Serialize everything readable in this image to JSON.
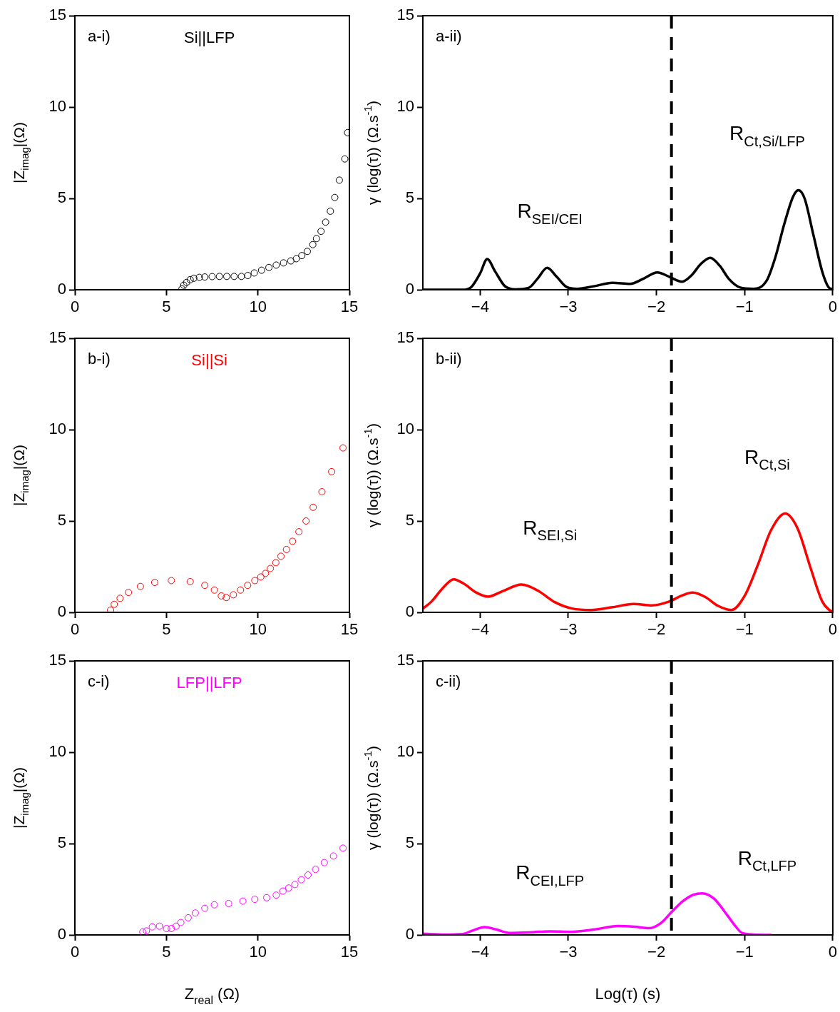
{
  "chart_data": [
    {
      "type": "scatter",
      "title": "a-i)",
      "ylabel": "|Z$_{imag}$|(Ω)",
      "xlim": [
        0,
        15
      ],
      "ylim": [
        0,
        15
      ],
      "xticks": [
        0,
        5,
        10,
        15
      ],
      "yticks": [
        0,
        5,
        10,
        15
      ],
      "marker": "circle",
      "series": [
        {
          "name": "Si||LFP",
          "color": "#000000",
          "x": [
            5.85,
            5.95,
            6.1,
            6.3,
            6.5,
            6.8,
            7.1,
            7.5,
            7.9,
            8.3,
            8.7,
            9.1,
            9.45,
            9.8,
            10.2,
            10.6,
            11.0,
            11.4,
            11.8,
            12.1,
            12.4,
            12.7,
            13.0,
            13.2,
            13.45,
            13.7,
            13.96,
            14.2,
            14.45,
            14.75,
            14.9
          ],
          "values": [
            0.05,
            0.25,
            0.4,
            0.55,
            0.63,
            0.68,
            0.7,
            0.72,
            0.73,
            0.73,
            0.73,
            0.73,
            0.78,
            0.92,
            1.07,
            1.22,
            1.35,
            1.47,
            1.58,
            1.7,
            1.87,
            2.1,
            2.47,
            2.8,
            3.2,
            3.7,
            4.3,
            5.05,
            6.0,
            7.16,
            8.6
          ]
        }
      ]
    },
    {
      "type": "line",
      "title": "a-ii)",
      "ylabel": "γ (log(τ)) (Ω.s$^{-1}$)",
      "xlim": [
        -4.65,
        0
      ],
      "ylim": [
        0,
        15
      ],
      "xticks": [
        {
          "value": -4,
          "label": "−4"
        },
        {
          "value": -3,
          "label": "−3"
        },
        {
          "value": -2,
          "label": "−2"
        },
        {
          "value": -1,
          "label": "−1"
        },
        0
      ],
      "yticks": [
        0,
        5,
        10,
        15
      ],
      "marker": "none",
      "ref_lines": [
        {
          "axis": "x",
          "value": -1.83,
          "color": "#000000",
          "line_style": "dashed"
        }
      ],
      "annotations": [
        "R$_{SEI/CEI}$",
        "R$_{Ct,Si/LFP}$"
      ],
      "series": [
        {
          "color": "#000000",
          "x": [
            -4.65,
            -4.2,
            -4.1,
            -4.0,
            -3.92,
            -3.83,
            -3.72,
            -3.6,
            -3.45,
            -3.35,
            -3.24,
            -3.13,
            -3.02,
            -2.9,
            -2.7,
            -2.5,
            -2.3,
            -2.15,
            -1.99,
            -1.85,
            -1.71,
            -1.6,
            -1.5,
            -1.39,
            -1.28,
            -1.18,
            -1.05,
            -0.9,
            -0.75,
            -0.65,
            -0.55,
            -0.45,
            -0.39,
            -0.32,
            -0.22,
            -0.12,
            -0.05,
            0
          ],
          "values": [
            0,
            0,
            0.15,
            0.9,
            1.68,
            1.0,
            0.2,
            0.02,
            0.1,
            0.6,
            1.2,
            0.7,
            0.15,
            0.05,
            0.2,
            0.38,
            0.32,
            0.6,
            0.95,
            0.7,
            0.44,
            0.8,
            1.4,
            1.75,
            1.3,
            0.6,
            0.12,
            0.05,
            0.5,
            1.8,
            3.6,
            5.1,
            5.45,
            5.0,
            3.0,
            1.0,
            0.15,
            0.02
          ]
        }
      ]
    },
    {
      "type": "scatter",
      "title": "b-i)",
      "ylabel": "|Z$_{imag}$|(Ω)",
      "xlim": [
        0,
        15
      ],
      "ylim": [
        0,
        15
      ],
      "xticks": [
        0,
        5,
        10,
        15
      ],
      "yticks": [
        0,
        5,
        10,
        15
      ],
      "marker": "circle",
      "series": [
        {
          "name": "Si||Si",
          "color": "#ff0000",
          "x": [
            1.95,
            2.15,
            2.47,
            2.93,
            3.58,
            4.36,
            5.27,
            6.3,
            7.1,
            7.62,
            8.0,
            8.27,
            8.66,
            9.05,
            9.44,
            9.83,
            10.16,
            10.41,
            10.68,
            10.98,
            11.26,
            11.56,
            11.89,
            12.24,
            12.63,
            13.02,
            13.5,
            14.03,
            14.65
          ],
          "values": [
            0.12,
            0.44,
            0.77,
            1.09,
            1.42,
            1.64,
            1.74,
            1.68,
            1.48,
            1.22,
            0.9,
            0.81,
            0.96,
            1.22,
            1.48,
            1.74,
            1.94,
            2.13,
            2.4,
            2.72,
            3.07,
            3.44,
            3.89,
            4.41,
            5.0,
            5.75,
            6.6,
            7.7,
            9.0
          ]
        }
      ]
    },
    {
      "type": "line",
      "title": "b-ii)",
      "ylabel": "γ (log(τ)) (Ω.s$^{-1}$)",
      "xlim": [
        -4.65,
        0
      ],
      "ylim": [
        0,
        15
      ],
      "xticks": [
        {
          "value": -4,
          "label": "−4"
        },
        {
          "value": -3,
          "label": "−3"
        },
        {
          "value": -2,
          "label": "−2"
        },
        {
          "value": -1,
          "label": "−1"
        },
        0
      ],
      "yticks": [
        0,
        5,
        10,
        15
      ],
      "marker": "none",
      "ref_lines": [
        {
          "axis": "x",
          "value": -1.83,
          "color": "#000000",
          "line_style": "dashed"
        }
      ],
      "annotations": [
        "R$_{SEI,Si}$",
        "R$_{Ct,Si}$"
      ],
      "series": [
        {
          "color": "#ff0000",
          "x": [
            -4.65,
            -4.55,
            -4.42,
            -4.3,
            -4.18,
            -4.05,
            -3.91,
            -3.75,
            -3.53,
            -3.35,
            -3.15,
            -2.95,
            -2.74,
            -2.5,
            -2.26,
            -2.05,
            -1.85,
            -1.72,
            -1.59,
            -1.45,
            -1.3,
            -1.15,
            -1.0,
            -0.85,
            -0.7,
            -0.54,
            -0.4,
            -0.25,
            -0.12,
            -0.04,
            0
          ],
          "values": [
            0.2,
            0.6,
            1.35,
            1.81,
            1.55,
            1.1,
            0.86,
            1.15,
            1.52,
            1.2,
            0.55,
            0.2,
            0.13,
            0.28,
            0.46,
            0.38,
            0.6,
            0.9,
            1.08,
            0.85,
            0.35,
            0.13,
            0.9,
            2.6,
            4.5,
            5.41,
            4.6,
            2.4,
            0.6,
            0.13,
            0.02
          ]
        }
      ]
    },
    {
      "type": "scatter",
      "title": "c-i)",
      "xlabel": "Z$_{real}$ (Ω)",
      "ylabel": "|Z$_{imag}$|(Ω)",
      "xlim": [
        0,
        15
      ],
      "ylim": [
        0,
        15
      ],
      "xticks": [
        0,
        5,
        10,
        15
      ],
      "yticks": [
        0,
        5,
        10,
        15
      ],
      "marker": "circle",
      "series": [
        {
          "name": "LFP||LFP",
          "color": "#ff00ff",
          "x": [
            3.71,
            3.91,
            4.23,
            4.62,
            5.01,
            5.27,
            5.53,
            5.79,
            6.19,
            6.58,
            7.1,
            7.62,
            8.4,
            9.18,
            9.83,
            10.48,
            11.0,
            11.37,
            11.68,
            12.02,
            12.37,
            12.74,
            13.15,
            13.63,
            14.13,
            14.65
          ],
          "values": [
            0.16,
            0.22,
            0.44,
            0.48,
            0.35,
            0.35,
            0.48,
            0.68,
            0.94,
            1.2,
            1.46,
            1.65,
            1.72,
            1.85,
            1.95,
            2.04,
            2.18,
            2.4,
            2.57,
            2.76,
            3.02,
            3.28,
            3.59,
            3.96,
            4.32,
            4.75
          ]
        }
      ]
    },
    {
      "type": "line",
      "title": "c-ii)",
      "xlabel": "Log(τ) (s)",
      "ylabel": "γ (log(τ)) (Ω.s$^{-1}$)",
      "xlim": [
        -4.65,
        0
      ],
      "ylim": [
        0,
        15
      ],
      "xticks": [
        {
          "value": -4,
          "label": "−4"
        },
        {
          "value": -3,
          "label": "−3"
        },
        {
          "value": -2,
          "label": "−2"
        },
        {
          "value": -1,
          "label": "−1"
        },
        0
      ],
      "yticks": [
        0,
        5,
        10,
        15
      ],
      "marker": "none",
      "ref_lines": [
        {
          "axis": "x",
          "value": -1.83,
          "color": "#000000",
          "line_style": "dashed"
        }
      ],
      "annotations": [
        "R$_{CEI,LFP}$",
        "R$_{Ct,LFP}$"
      ],
      "series": [
        {
          "color": "#ff00ff",
          "x": [
            -4.65,
            -4.4,
            -4.2,
            -4.08,
            -3.95,
            -3.82,
            -3.67,
            -3.4,
            -3.2,
            -2.98,
            -2.7,
            -2.44,
            -2.25,
            -2.08,
            -1.95,
            -1.82,
            -1.7,
            -1.58,
            -1.48,
            -1.35,
            -1.2,
            -1.1,
            -1.03,
            -0.9,
            -0.7
          ],
          "values": [
            0.07,
            0.02,
            0.05,
            0.25,
            0.43,
            0.3,
            0.11,
            0.15,
            0.2,
            0.17,
            0.3,
            0.49,
            0.45,
            0.37,
            0.65,
            1.3,
            1.85,
            2.2,
            2.28,
            2.0,
            1.1,
            0.45,
            0.11,
            0.02,
            0
          ]
        }
      ]
    }
  ]
}
